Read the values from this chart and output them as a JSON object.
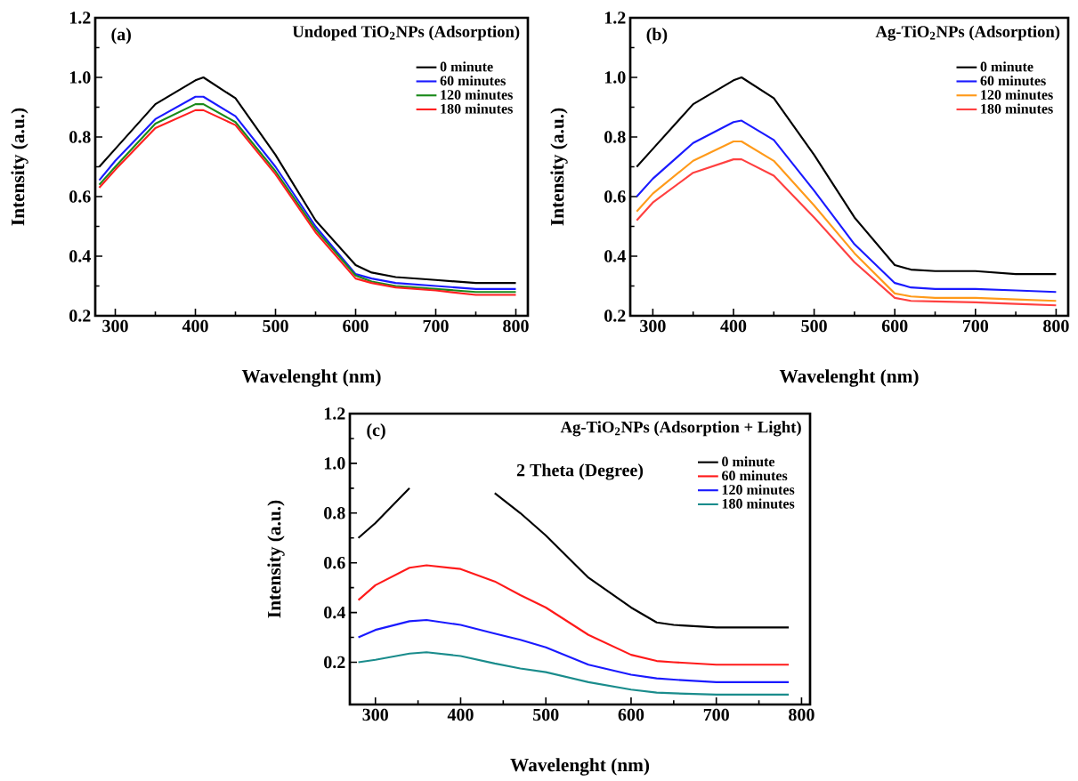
{
  "chart_data": [
    {
      "type": "line",
      "title": "Undoped TiO$_{2}$NPs (Adsorption)",
      "annotations": [
        "(a)"
      ],
      "xlabel": "Wavelenght (nm)",
      "ylabel": "Intensity (a.u.)",
      "legend": "top right",
      "line_style": "solid",
      "xlim": [
        275,
        815
      ],
      "ylim": [
        0.2,
        1.2
      ],
      "xticks": [
        300,
        400,
        500,
        600,
        700,
        800
      ],
      "yticks": [
        {
          "value": 0.2,
          "label": "0.2"
        },
        {
          "value": 0.4,
          "label": "0.4"
        },
        {
          "value": 0.6,
          "label": "0.6"
        },
        {
          "value": 0.8,
          "label": "0.8"
        },
        {
          "value": 1.0,
          "label": "1.0"
        },
        {
          "value": 1.2,
          "label": "1.2"
        }
      ],
      "x": [
        280,
        300,
        350,
        400,
        410,
        450,
        500,
        550,
        600,
        620,
        650,
        700,
        750,
        800
      ],
      "series": [
        {
          "name": "0  minute",
          "color": "#000000",
          "values": [
            0.7,
            0.76,
            0.91,
            0.99,
            1.0,
            0.93,
            0.74,
            0.52,
            0.37,
            0.345,
            0.33,
            0.32,
            0.31,
            0.31
          ]
        },
        {
          "name": "60  minutes",
          "color": "#1a1aff",
          "values": [
            0.655,
            0.72,
            0.86,
            0.935,
            0.935,
            0.87,
            0.7,
            0.5,
            0.34,
            0.325,
            0.31,
            0.3,
            0.29,
            0.29
          ]
        },
        {
          "name": "120  minutes",
          "color": "#1a8a1a",
          "values": [
            0.64,
            0.7,
            0.845,
            0.91,
            0.91,
            0.85,
            0.685,
            0.49,
            0.335,
            0.315,
            0.3,
            0.29,
            0.28,
            0.28
          ]
        },
        {
          "name": "180 minutes",
          "color": "#ff2020",
          "values": [
            0.63,
            0.69,
            0.83,
            0.89,
            0.89,
            0.84,
            0.675,
            0.48,
            0.325,
            0.31,
            0.295,
            0.285,
            0.27,
            0.27
          ]
        }
      ]
    },
    {
      "type": "line",
      "title": "Ag-TiO$_{2}$NPs (Adsorption)",
      "annotations": [
        "(b)"
      ],
      "xlabel": "Wavelenght (nm)",
      "ylabel": "Intensity (a.u.)",
      "legend": "top right",
      "line_style": "solid",
      "xlim": [
        272,
        815
      ],
      "ylim": [
        0.2,
        1.2
      ],
      "xticks": [
        300,
        400,
        500,
        600,
        700,
        800
      ],
      "yticks": [
        {
          "value": 0.2,
          "label": "0.2"
        },
        {
          "value": 0.4,
          "label": "0.4"
        },
        {
          "value": 0.6,
          "label": "0.6"
        },
        {
          "value": 0.8,
          "label": "0.8"
        },
        {
          "value": 1.0,
          "label": "1.0"
        },
        {
          "value": 1.2,
          "label": "1.2"
        }
      ],
      "x": [
        280,
        300,
        350,
        400,
        410,
        450,
        500,
        550,
        600,
        620,
        650,
        700,
        750,
        800
      ],
      "series": [
        {
          "name": "0  minute",
          "color": "#000000",
          "values": [
            0.7,
            0.76,
            0.91,
            0.99,
            1.0,
            0.93,
            0.74,
            0.53,
            0.37,
            0.355,
            0.35,
            0.35,
            0.34,
            0.34
          ]
        },
        {
          "name": "60  minutes",
          "color": "#1a1aff",
          "values": [
            0.6,
            0.66,
            0.78,
            0.85,
            0.855,
            0.79,
            0.62,
            0.44,
            0.31,
            0.295,
            0.29,
            0.29,
            0.285,
            0.28
          ]
        },
        {
          "name": "120  minutes",
          "color": "#ff9a1a",
          "values": [
            0.55,
            0.61,
            0.72,
            0.785,
            0.785,
            0.72,
            0.57,
            0.41,
            0.275,
            0.265,
            0.26,
            0.26,
            0.255,
            0.25
          ]
        },
        {
          "name": "180 minutes",
          "color": "#ff4040",
          "values": [
            0.52,
            0.58,
            0.68,
            0.725,
            0.725,
            0.67,
            0.53,
            0.38,
            0.26,
            0.25,
            0.248,
            0.245,
            0.24,
            0.235
          ]
        }
      ]
    },
    {
      "type": "line",
      "title": "Ag-TiO$_{2}$NPs (Adsorption + Light)",
      "annotations": [
        "(c)",
        "2 Theta (Degree)"
      ],
      "xlabel": "Wavelenght (nm)",
      "ylabel": "Intensity (a.u.)",
      "legend": "top right",
      "line_style": "solid",
      "xlim": [
        270,
        810
      ],
      "ylim": [
        0.03,
        1.2
      ],
      "xticks": [
        300,
        400,
        500,
        600,
        700,
        800
      ],
      "yticks": [
        {
          "value": 0.2,
          "label": "0.2"
        },
        {
          "value": 0.4,
          "label": "0.4"
        },
        {
          "value": 0.6,
          "label": "0.6"
        },
        {
          "value": 0.8,
          "label": "0.8"
        },
        {
          "value": 1.0,
          "label": "1.0"
        },
        {
          "value": 1.2,
          "label": "1.2"
        }
      ],
      "x": [
        280,
        300,
        340,
        360,
        400,
        440,
        470,
        500,
        550,
        600,
        630,
        650,
        700,
        785
      ],
      "series": [
        {
          "name": "0  minute",
          "color": "#000000",
          "values": [
            0.7,
            0.76,
            0.9,
            null,
            null,
            0.88,
            0.8,
            0.71,
            0.54,
            0.42,
            0.36,
            0.35,
            0.34,
            0.34
          ]
        },
        {
          "name": "60  minutes",
          "color": "#ff1a1a",
          "values": [
            0.45,
            0.51,
            0.58,
            0.59,
            0.575,
            0.525,
            0.47,
            0.42,
            0.31,
            0.23,
            0.205,
            0.2,
            0.19,
            0.19
          ]
        },
        {
          "name": "120  minutes",
          "color": "#1a1aff",
          "values": [
            0.3,
            0.33,
            0.365,
            0.37,
            0.35,
            0.315,
            0.29,
            0.26,
            0.19,
            0.15,
            0.135,
            0.13,
            0.12,
            0.12
          ]
        },
        {
          "name": "180 minutes",
          "color": "#1a8c8c",
          "values": [
            0.2,
            0.21,
            0.235,
            0.24,
            0.225,
            0.195,
            0.175,
            0.16,
            0.12,
            0.09,
            0.078,
            0.075,
            0.07,
            0.07
          ]
        }
      ]
    }
  ]
}
